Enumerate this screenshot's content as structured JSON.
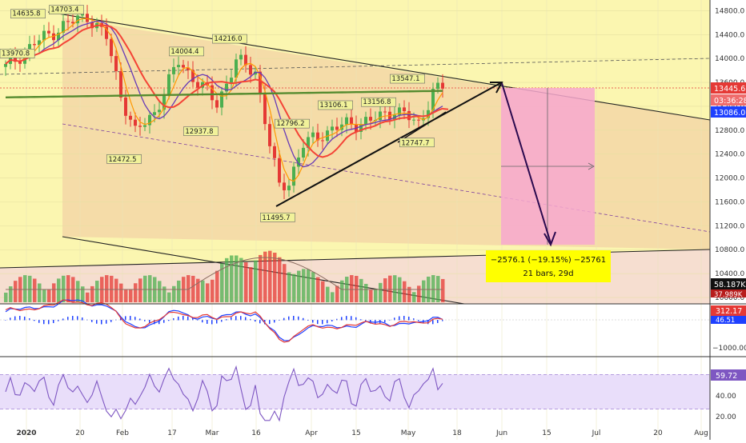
{
  "chart_data": [
    {
      "type": "candlestick",
      "panel": "price",
      "ylim": [
        10000,
        14900
      ],
      "y_ticks": [
        "14800.0",
        "14400.0",
        "14000.0",
        "13600.0",
        "13200.0",
        "12800.0",
        "12400.0",
        "12000.0",
        "11600.0",
        "11200.0",
        "10800.0",
        "10400.0",
        "10000.0"
      ],
      "x_ticks": [
        "2020",
        "20",
        "Feb",
        "17",
        "Mar",
        "16",
        "Apr",
        "15",
        "May",
        "18",
        "Jun",
        "15",
        "Jul",
        "20",
        "Aug"
      ],
      "anchor_closes": [
        [
          0,
          13850
        ],
        [
          6,
          14250
        ],
        [
          12,
          14550
        ],
        [
          17,
          14720
        ],
        [
          21,
          14350
        ],
        [
          24,
          13400
        ],
        [
          27,
          12750
        ],
        [
          31,
          13100
        ],
        [
          36,
          13950
        ],
        [
          40,
          13600
        ],
        [
          44,
          13250
        ],
        [
          48,
          13950
        ],
        [
          52,
          13800
        ],
        [
          55,
          12550
        ],
        [
          57,
          11850
        ],
        [
          59,
          11950
        ],
        [
          62,
          12550
        ],
        [
          66,
          12750
        ],
        [
          71,
          12900
        ],
        [
          76,
          12950
        ],
        [
          81,
          13150
        ],
        [
          86,
          12900
        ],
        [
          89,
          13450
        ],
        [
          91,
          13500
        ]
      ],
      "price_labels": [
        "14635.8",
        "14703.4",
        "13970.8",
        "14216.0",
        "14004.4",
        "13547.1",
        "13106.1",
        "13156.8",
        "12937.8",
        "12796.2",
        "12472.5",
        "12747.7",
        "11495.7"
      ],
      "right_badges": {
        "last_price": "13445.6",
        "countdown": "03:36:28",
        "ma_value": "13086.0"
      },
      "projection": {
        "line1": "−2576.1 (−19.15%) −25761",
        "line2": "21 bars, 29d"
      }
    },
    {
      "type": "bar",
      "panel": "volume",
      "badges": [
        "58.187K",
        "37.989K"
      ]
    },
    {
      "type": "line",
      "panel": "macd",
      "y_ticks": [
        "−1000.00"
      ],
      "badges": [
        "312.17",
        "46.51"
      ]
    },
    {
      "type": "line",
      "panel": "rsi",
      "ylim": [
        15,
        85
      ],
      "y_ticks": [
        "40.00",
        "20.00"
      ],
      "bands": [
        70,
        30
      ],
      "last_value": 59.72,
      "badge": "59.72"
    }
  ],
  "colors": {
    "up": "#4caf50",
    "down": "#e53935",
    "ma_red": "#f44336",
    "ma_orange": "#ff9800",
    "ma_purple": "#673ab7",
    "ma_green": "#558b2f",
    "rsi": "#7e57c2",
    "macd_blue": "#1e40ff",
    "bg_yellow": "#fbf6b0",
    "channel_fill": "#f5dca8",
    "projection_pink": "#f7a8cf"
  }
}
